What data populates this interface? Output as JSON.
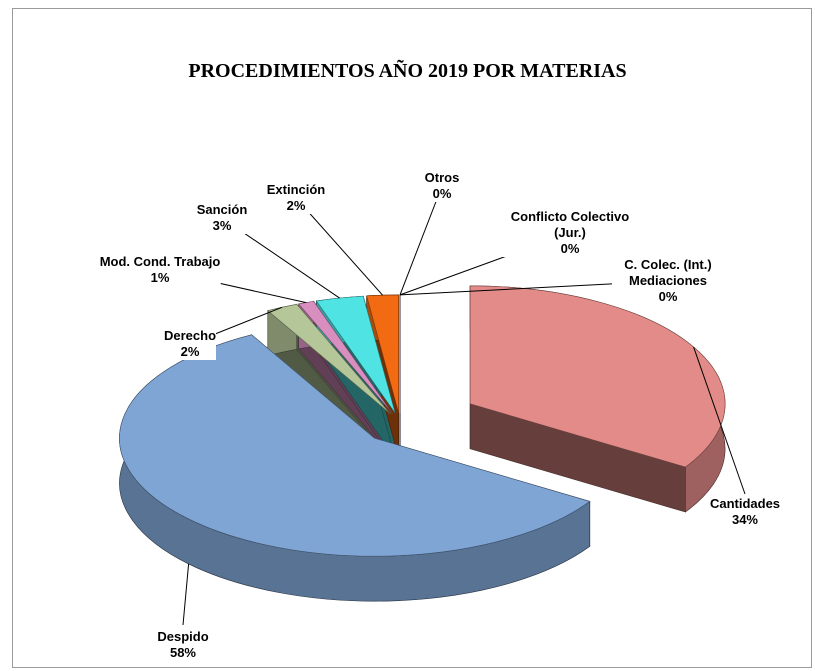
{
  "chart_data": {
    "type": "pie",
    "title": "PROCEDIMIENTOS AÑO 2019 POR MATERIAS",
    "categories": [
      "Cantidades",
      "Despido",
      "Derecho",
      "Mod. Cond. Trabajo",
      "Sanción",
      "Extinción",
      "Otros",
      "Conflicto Colectivo (Jur.)",
      "C. Colec. (Int.) Mediaciones"
    ],
    "values": [
      34,
      58,
      2,
      1,
      3,
      2,
      0,
      0,
      0
    ],
    "value_labels": [
      "34%",
      "58%",
      "2%",
      "1%",
      "3%",
      "2%",
      "0%",
      "0%",
      "0%"
    ],
    "colors": [
      "#e38b88",
      "#7fa5d5",
      "#b5c799",
      "#d88fc0",
      "#4fe3e3",
      "#f26b12",
      "#efe27a",
      "#a8c4e4",
      "#1f2385"
    ]
  }
}
